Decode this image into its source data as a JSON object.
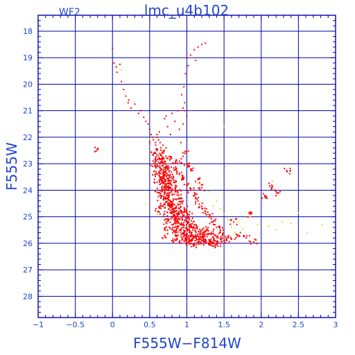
{
  "chart_data": {
    "type": "scatter",
    "corner_label": "WF2",
    "title": "lmc_u4b102",
    "xlabel": "F555W−F814W",
    "ylabel": "F555W",
    "xlim": [
      -1,
      3
    ],
    "ylim": [
      28.8,
      17.4
    ],
    "y_inverted": true,
    "grid": true,
    "xticks": [
      {
        "value": -1,
        "label": "−1"
      },
      {
        "value": -0.5,
        "label": "−0.5"
      },
      {
        "value": 0,
        "label": "0"
      },
      {
        "value": 0.5,
        "label": "0.5"
      },
      {
        "value": 1,
        "label": "1"
      },
      {
        "value": 1.5,
        "label": "1.5"
      },
      {
        "value": 2,
        "label": "2"
      },
      {
        "value": 2.5,
        "label": "2.5"
      },
      {
        "value": 3,
        "label": "3"
      }
    ],
    "yticks": [
      {
        "value": 18,
        "label": "18"
      },
      {
        "value": 19,
        "label": "19"
      },
      {
        "value": 20,
        "label": "20"
      },
      {
        "value": 21,
        "label": "21"
      },
      {
        "value": 22,
        "label": "22"
      },
      {
        "value": 23,
        "label": "23"
      },
      {
        "value": 24,
        "label": "24"
      },
      {
        "value": 25,
        "label": "25"
      },
      {
        "value": 26,
        "label": "26"
      },
      {
        "value": 27,
        "label": "27"
      },
      {
        "value": 28,
        "label": "28"
      }
    ],
    "colors": {
      "frame": "#0000aa",
      "text": "#2244cc",
      "red_points": "#ff0000",
      "yellow_points": "#ffd700"
    },
    "series": [
      {
        "color": "red",
        "points": [
          [
            -0.2,
            22.45
          ],
          [
            0,
            18.65
          ],
          [
            0.02,
            19.2
          ],
          [
            0.05,
            19.35
          ],
          [
            0.06,
            19.55
          ],
          [
            0.1,
            19.25
          ],
          [
            0.12,
            19.9
          ],
          [
            0.15,
            20.2
          ],
          [
            0.18,
            20.45
          ],
          [
            0.21,
            20.7
          ],
          [
            0.22,
            20.6
          ],
          [
            0.25,
            20.9
          ],
          [
            0.3,
            20.75
          ],
          [
            0.35,
            21.1
          ],
          [
            0.38,
            21.0
          ],
          [
            0.42,
            21.25
          ],
          [
            0.45,
            21.4
          ],
          [
            0.48,
            21.5
          ],
          [
            0.5,
            21.7
          ],
          [
            0.52,
            21.9
          ],
          [
            0.55,
            22.1
          ],
          [
            0.58,
            22.2
          ],
          [
            0.6,
            22.0
          ],
          [
            0.63,
            21.8
          ],
          [
            0.65,
            22.4
          ],
          [
            0.68,
            22.6
          ],
          [
            0.7,
            21.3
          ],
          [
            0.72,
            21.2
          ],
          [
            0.74,
            21.6
          ],
          [
            0.78,
            21.9
          ],
          [
            0.8,
            21.1
          ],
          [
            0.84,
            21.4
          ],
          [
            0.88,
            21.0
          ],
          [
            0.9,
            21.7
          ],
          [
            0.92,
            22.2
          ],
          [
            0.95,
            21.5
          ],
          [
            0.97,
            21.0
          ],
          [
            0.98,
            22.6
          ],
          [
            1.0,
            21.2
          ],
          [
            0.93,
            20.4
          ],
          [
            0.96,
            20.1
          ],
          [
            0.98,
            19.6
          ],
          [
            1.0,
            19.0
          ],
          [
            1.02,
            19.3
          ],
          [
            1.05,
            18.9
          ],
          [
            1.1,
            18.7
          ],
          [
            1.15,
            18.6
          ],
          [
            1.2,
            18.5
          ],
          [
            1.25,
            18.45
          ],
          [
            1.12,
            19.1
          ],
          [
            0.97,
            20.7
          ],
          [
            0.95,
            20.9
          ],
          [
            0.6,
            22.5
          ],
          [
            0.62,
            22.8
          ],
          [
            0.64,
            23.0
          ],
          [
            0.66,
            23.2
          ],
          [
            0.68,
            23.4
          ],
          [
            0.7,
            23.6
          ],
          [
            0.72,
            23.8
          ],
          [
            0.74,
            24.0
          ],
          [
            0.76,
            24.2
          ],
          [
            0.78,
            24.4
          ],
          [
            0.8,
            24.5
          ],
          [
            0.82,
            24.7
          ],
          [
            0.85,
            24.8
          ],
          [
            0.88,
            25.0
          ],
          [
            0.9,
            25.1
          ],
          [
            0.93,
            25.3
          ],
          [
            0.96,
            25.4
          ],
          [
            1.0,
            25.5
          ],
          [
            1.04,
            25.6
          ],
          [
            1.08,
            25.7
          ],
          [
            1.12,
            25.8
          ],
          [
            1.16,
            25.85
          ],
          [
            1.2,
            25.9
          ],
          [
            1.25,
            25.95
          ],
          [
            1.3,
            26.0
          ],
          [
            1.35,
            26.0
          ],
          [
            1.4,
            26.05
          ],
          [
            1.45,
            26.0
          ],
          [
            0.56,
            22.6
          ],
          [
            0.58,
            22.9
          ],
          [
            0.61,
            23.1
          ],
          [
            0.63,
            23.3
          ],
          [
            0.65,
            23.5
          ],
          [
            0.67,
            23.7
          ],
          [
            0.69,
            23.9
          ],
          [
            0.71,
            24.1
          ],
          [
            0.73,
            24.3
          ],
          [
            0.75,
            24.5
          ],
          [
            0.77,
            24.6
          ],
          [
            0.79,
            24.8
          ],
          [
            0.83,
            25.0
          ],
          [
            0.86,
            25.2
          ],
          [
            0.89,
            25.35
          ],
          [
            0.92,
            25.5
          ],
          [
            0.95,
            25.6
          ],
          [
            0.99,
            25.7
          ],
          [
            1.03,
            25.8
          ],
          [
            1.07,
            25.85
          ],
          [
            1.11,
            25.9
          ],
          [
            0.66,
            22.7
          ],
          [
            0.7,
            22.9
          ],
          [
            0.73,
            23.1
          ],
          [
            0.76,
            23.3
          ],
          [
            0.79,
            23.5
          ],
          [
            0.82,
            23.7
          ],
          [
            0.85,
            23.9
          ],
          [
            0.88,
            24.1
          ],
          [
            0.91,
            24.3
          ],
          [
            0.94,
            24.5
          ],
          [
            0.97,
            24.7
          ],
          [
            1.0,
            24.85
          ],
          [
            1.03,
            25.0
          ],
          [
            1.06,
            25.15
          ],
          [
            1.1,
            25.3
          ],
          [
            1.14,
            25.45
          ],
          [
            1.18,
            25.55
          ],
          [
            1.22,
            25.65
          ],
          [
            1.27,
            25.75
          ],
          [
            1.32,
            25.85
          ],
          [
            1.38,
            25.9
          ],
          [
            0.55,
            23.0
          ],
          [
            0.57,
            23.4
          ],
          [
            0.6,
            23.7
          ],
          [
            0.62,
            24.0
          ],
          [
            0.65,
            24.3
          ],
          [
            0.68,
            24.6
          ],
          [
            0.7,
            24.9
          ],
          [
            0.72,
            25.2
          ],
          [
            0.74,
            25.5
          ],
          [
            0.7,
            25.7
          ],
          [
            0.8,
            25.9
          ],
          [
            0.9,
            25.95
          ],
          [
            0.85,
            25.6
          ],
          [
            1.0,
            26.0
          ],
          [
            1.1,
            26.05
          ],
          [
            1.2,
            26.0
          ],
          [
            1.3,
            25.95
          ],
          [
            1.5,
            25.9
          ],
          [
            1.55,
            25.8
          ],
          [
            1.6,
            25.85
          ],
          [
            1.7,
            25.7
          ],
          [
            1.8,
            25.8
          ],
          [
            1.9,
            25.95
          ],
          [
            1.63,
            25.2
          ],
          [
            1.85,
            24.9
          ],
          [
            2.05,
            24.25
          ],
          [
            2.15,
            23.85
          ],
          [
            2.35,
            23.3
          ],
          [
            2.22,
            24.1
          ],
          [
            0.78,
            22.8
          ],
          [
            0.82,
            23.0
          ],
          [
            0.86,
            23.2
          ],
          [
            0.9,
            23.4
          ],
          [
            0.95,
            23.6
          ],
          [
            1.0,
            23.8
          ],
          [
            1.05,
            24.0
          ],
          [
            1.1,
            24.2
          ],
          [
            1.15,
            24.4
          ],
          [
            1.2,
            24.6
          ],
          [
            1.25,
            24.8
          ],
          [
            1.3,
            25.0
          ],
          [
            1.35,
            25.2
          ],
          [
            1.4,
            25.4
          ],
          [
            1.45,
            25.5
          ],
          [
            0.64,
            22.2
          ],
          [
            0.68,
            22.3
          ],
          [
            0.72,
            22.4
          ],
          [
            0.62,
            22.1
          ],
          [
            0.6,
            21.9
          ],
          [
            0.58,
            22.3
          ],
          [
            0.54,
            22.0
          ],
          [
            0.5,
            22.2
          ],
          [
            1.0,
            23.0
          ],
          [
            1.05,
            23.2
          ],
          [
            0.9,
            22.9
          ],
          [
            1.15,
            23.6
          ],
          [
            1.2,
            23.9
          ],
          [
            0.66,
            24.2
          ],
          [
            0.64,
            24.6
          ],
          [
            0.62,
            24.8
          ],
          [
            0.76,
            25.1
          ],
          [
            0.8,
            25.3
          ],
          [
            0.84,
            25.5
          ],
          [
            0.88,
            25.7
          ],
          [
            0.94,
            25.8
          ],
          [
            0.98,
            25.85
          ],
          [
            1.02,
            25.95
          ],
          [
            1.06,
            26.0
          ],
          [
            1.14,
            25.7
          ],
          [
            1.18,
            25.75
          ],
          [
            1.24,
            25.6
          ],
          [
            1.28,
            25.5
          ],
          [
            1.34,
            25.65
          ],
          [
            1.42,
            25.8
          ],
          [
            1.48,
            25.7
          ],
          [
            0.71,
            23.3
          ],
          [
            0.74,
            23.55
          ],
          [
            0.77,
            23.75
          ],
          [
            0.8,
            23.95
          ],
          [
            0.83,
            24.15
          ],
          [
            0.86,
            24.35
          ],
          [
            0.89,
            24.55
          ],
          [
            0.92,
            24.75
          ],
          [
            0.95,
            24.95
          ],
          [
            0.98,
            25.1
          ],
          [
            1.01,
            25.25
          ],
          [
            1.04,
            25.4
          ],
          [
            1.08,
            25.5
          ],
          [
            0.69,
            23.0
          ],
          [
            0.71,
            23.15
          ],
          [
            0.67,
            22.85
          ],
          [
            0.73,
            23.45
          ],
          [
            0.75,
            23.65
          ],
          [
            0.67,
            23.55
          ],
          [
            0.69,
            23.75
          ],
          [
            0.71,
            23.95
          ],
          [
            0.73,
            24.15
          ],
          [
            0.75,
            24.35
          ],
          [
            0.77,
            24.55
          ],
          [
            0.8,
            24.65
          ],
          [
            0.83,
            24.85
          ],
          [
            0.87,
            24.95
          ]
        ]
      },
      {
        "color": "yellow",
        "points": [
          [
            0.12,
            19.45
          ],
          [
            0.5,
            22.05
          ],
          [
            0.98,
            22.6
          ],
          [
            1.5,
            21.6
          ],
          [
            1.15,
            23.75
          ],
          [
            1.3,
            24.05
          ],
          [
            1.4,
            24.4
          ],
          [
            1.45,
            24.7
          ],
          [
            1.5,
            24.9
          ],
          [
            1.55,
            25.1
          ],
          [
            1.6,
            25.4
          ],
          [
            1.65,
            25.6
          ],
          [
            1.75,
            25.45
          ],
          [
            1.85,
            25.0
          ],
          [
            1.95,
            25.3
          ],
          [
            2.1,
            25.35
          ],
          [
            2.2,
            25.5
          ],
          [
            2.28,
            25.2
          ],
          [
            2.4,
            25.25
          ],
          [
            2.5,
            24.85
          ],
          [
            2.62,
            25.6
          ],
          [
            2.82,
            25.3
          ],
          [
            2.15,
            23.65
          ],
          [
            1.52,
            23.1
          ],
          [
            0.6,
            24.9
          ],
          [
            0.72,
            25.5
          ],
          [
            0.85,
            25.1
          ],
          [
            1.25,
            24.9
          ],
          [
            1.35,
            24.6
          ],
          [
            0.45,
            24.5
          ],
          [
            1.7,
            25.2
          ]
        ]
      }
    ]
  }
}
